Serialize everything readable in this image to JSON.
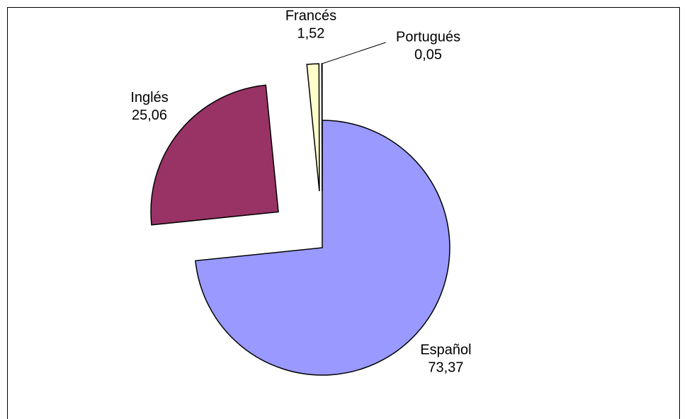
{
  "chart_data": {
    "type": "pie",
    "categories": [
      "Español",
      "Inglés",
      "Francés",
      "Portugués"
    ],
    "values": [
      73.37,
      25.06,
      1.52,
      0.05
    ],
    "value_labels": [
      "73,37",
      "25,06",
      "1,52",
      "0,05"
    ],
    "colors": [
      "#9999ff",
      "#993366",
      "#ffffcc",
      "#ccffff"
    ]
  }
}
